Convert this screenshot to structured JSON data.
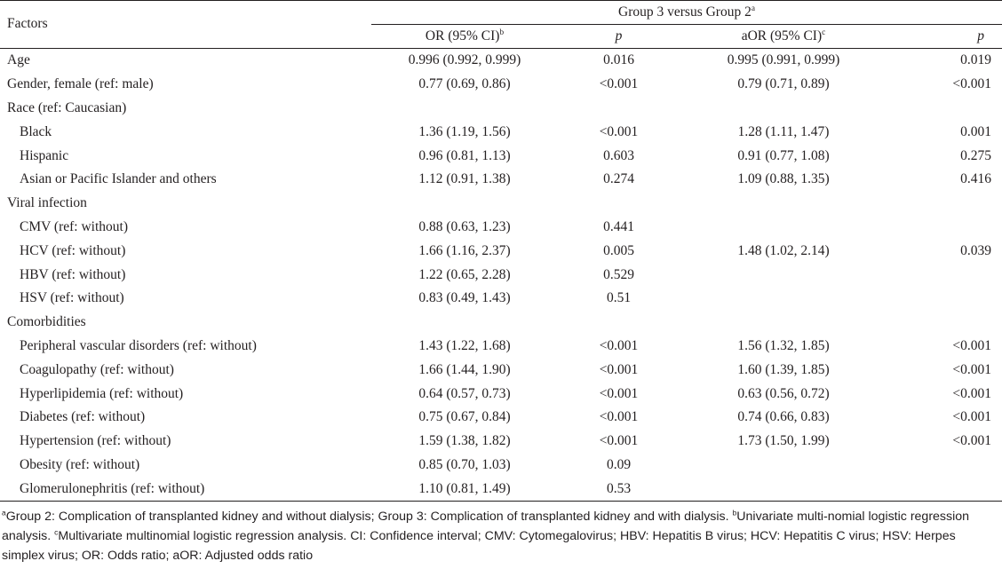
{
  "header": {
    "factors": "Factors",
    "group_label": "Group 3 versus Group 2",
    "group_sup": "a",
    "or_label": "OR (95% CI)",
    "or_sup": "b",
    "p_label": "p",
    "aor_label": "aOR (95% CI)",
    "aor_sup": "c",
    "p2_label": "p"
  },
  "rows": [
    {
      "factor": "Age",
      "indent": false,
      "or": "0.996 (0.992, 0.999)",
      "p": "0.016",
      "aor": "0.995 (0.991, 0.999)",
      "p2": "0.019"
    },
    {
      "factor": "Gender, female (ref: male)",
      "indent": false,
      "or": "0.77 (0.69, 0.86)",
      "p": "<0.001",
      "aor": "0.79 (0.71, 0.89)",
      "p2": "<0.001"
    },
    {
      "factor": "Race (ref: Caucasian)",
      "indent": false,
      "or": "",
      "p": "",
      "aor": "",
      "p2": ""
    },
    {
      "factor": "Black",
      "indent": true,
      "or": "1.36 (1.19, 1.56)",
      "p": "<0.001",
      "aor": "1.28 (1.11, 1.47)",
      "p2": "0.001"
    },
    {
      "factor": "Hispanic",
      "indent": true,
      "or": "0.96 (0.81, 1.13)",
      "p": "0.603",
      "aor": "0.91 (0.77, 1.08)",
      "p2": "0.275"
    },
    {
      "factor": "Asian or Pacific Islander and others",
      "indent": true,
      "or": "1.12 (0.91, 1.38)",
      "p": "0.274",
      "aor": "1.09 (0.88, 1.35)",
      "p2": "0.416"
    },
    {
      "factor": "Viral infection",
      "indent": false,
      "or": "",
      "p": "",
      "aor": "",
      "p2": ""
    },
    {
      "factor": "CMV (ref: without)",
      "indent": true,
      "or": "0.88 (0.63, 1.23)",
      "p": "0.441",
      "aor": "",
      "p2": ""
    },
    {
      "factor": "HCV (ref: without)",
      "indent": true,
      "or": "1.66 (1.16, 2.37)",
      "p": "0.005",
      "aor": "1.48 (1.02, 2.14)",
      "p2": "0.039"
    },
    {
      "factor": "HBV (ref: without)",
      "indent": true,
      "or": "1.22 (0.65, 2.28)",
      "p": "0.529",
      "aor": "",
      "p2": ""
    },
    {
      "factor": "HSV (ref: without)",
      "indent": true,
      "or": "0.83 (0.49, 1.43)",
      "p": "0.51",
      "aor": "",
      "p2": ""
    },
    {
      "factor": "Comorbidities",
      "indent": false,
      "or": "",
      "p": "",
      "aor": "",
      "p2": ""
    },
    {
      "factor": "Peripheral vascular disorders (ref: without)",
      "indent": true,
      "or": "1.43 (1.22, 1.68)",
      "p": "<0.001",
      "aor": "1.56 (1.32, 1.85)",
      "p2": "<0.001"
    },
    {
      "factor": "Coagulopathy (ref: without)",
      "indent": true,
      "or": "1.66 (1.44, 1.90)",
      "p": "<0.001",
      "aor": "1.60 (1.39, 1.85)",
      "p2": "<0.001"
    },
    {
      "factor": "Hyperlipidemia (ref: without)",
      "indent": true,
      "or": "0.64 (0.57, 0.73)",
      "p": "<0.001",
      "aor": "0.63 (0.56, 0.72)",
      "p2": "<0.001"
    },
    {
      "factor": "Diabetes (ref: without)",
      "indent": true,
      "or": "0.75 (0.67, 0.84)",
      "p": "<0.001",
      "aor": "0.74 (0.66, 0.83)",
      "p2": "<0.001"
    },
    {
      "factor": "Hypertension (ref: without)",
      "indent": true,
      "or": "1.59 (1.38, 1.82)",
      "p": "<0.001",
      "aor": "1.73 (1.50, 1.99)",
      "p2": "<0.001"
    },
    {
      "factor": "Obesity (ref: without)",
      "indent": true,
      "or": "0.85 (0.70, 1.03)",
      "p": "0.09",
      "aor": "",
      "p2": ""
    },
    {
      "factor": "Glomerulonephritis (ref: without)",
      "indent": true,
      "or": "1.10 (0.81, 1.49)",
      "p": "0.53",
      "aor": "",
      "p2": ""
    }
  ],
  "footnote": [
    {
      "sup": "a",
      "text": "Group 2: Complication of transplanted kidney and without dialysis; Group 3: Complication of transplanted kidney and with dialysis. "
    },
    {
      "sup": "b",
      "text": "Univariate multi-nomial logistic regression analysis. "
    },
    {
      "sup": "c",
      "text": "Multivariate multinomial logistic regression analysis. CI: Confidence interval; CMV: Cytomegalovirus; HBV: Hepatitis B virus; HCV: Hepatitis C virus; HSV: Herpes simplex virus; OR: Odds ratio; aOR: Adjusted odds ratio"
    }
  ]
}
